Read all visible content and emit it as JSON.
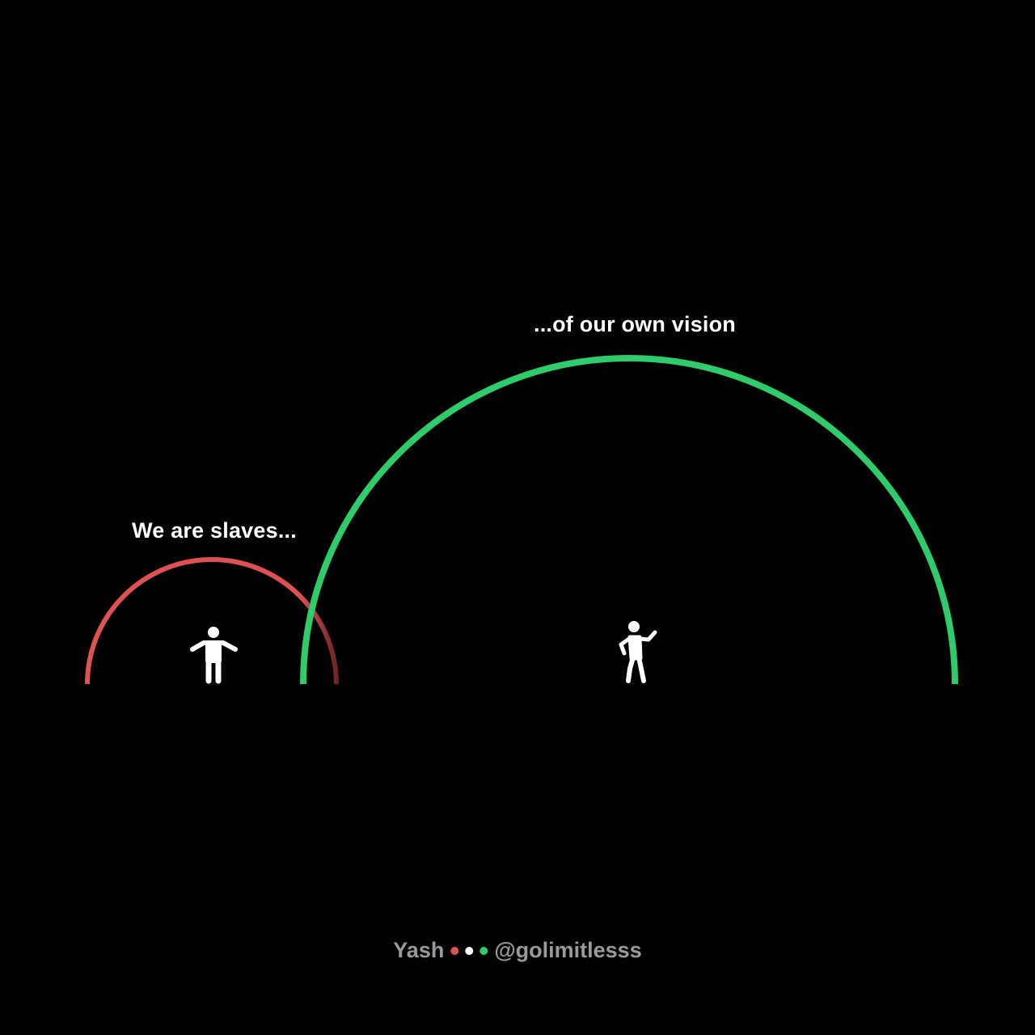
{
  "captions": {
    "left": "We are slaves...",
    "right": "...of our own vision"
  },
  "footer": {
    "author": "Yash",
    "handle": "@golimitlesss",
    "dot_colors": [
      "#e05252",
      "#ffffff",
      "#2ecc6b"
    ]
  },
  "colors": {
    "background": "#000000",
    "small_arc": "#e05252",
    "small_arc_faded": "#6b2525",
    "large_arc": "#2ecc6b",
    "figures": "#ffffff",
    "text": "#ffffff",
    "footer_text": "#9a9a9a"
  },
  "icons": {
    "left_figure": "standing-person-icon",
    "right_figure": "walking-waving-person-icon"
  }
}
